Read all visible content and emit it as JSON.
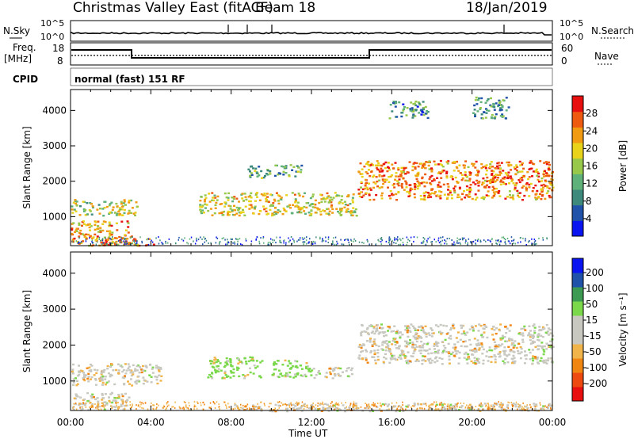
{
  "header": {
    "station": "Christmas Valley East (fitACF)",
    "beam": "Beam 18",
    "date": "18/Jan/2019"
  },
  "strip": {
    "nsky_label": "N.Sky",
    "nsearch_label": "N.Search",
    "freq_label": "Freq.",
    "freq_unit": "[MHz]",
    "nave_label": "Nave",
    "cpid_label": "CPID",
    "noise_ticks_left": [
      "10^5",
      "10^0"
    ],
    "noise_ticks_right": [
      "10^5",
      "10^0"
    ],
    "freq_ticks": [
      "18",
      "8"
    ],
    "nave_ticks": [
      "60",
      "0"
    ],
    "cpid_text": "normal (fast) 151 RF"
  },
  "chart_data": [
    {
      "type": "heatmap",
      "title": "",
      "ylabel": "Slant Range [km]",
      "xlabel": "Time UT",
      "x_ticks": [
        "00:00",
        "04:00",
        "08:00",
        "12:00",
        "16:00",
        "20:00",
        "00:00"
      ],
      "y_ticks": [
        "1000",
        "2000",
        "3000",
        "4000"
      ],
      "ylim": [
        180,
        4590
      ],
      "xlim_hours": [
        0,
        24
      ],
      "colorbar": {
        "label": "Power [dB]",
        "ticks": [
          "4",
          "8",
          "12",
          "16",
          "20",
          "24",
          "28"
        ],
        "range": [
          0,
          32
        ],
        "colors": [
          "#0a14f0",
          "#1f52a8",
          "#3d8a7d",
          "#5fb17a",
          "#97c84a",
          "#e8d21a",
          "#f09b12",
          "#ee5a10",
          "#e8100e"
        ]
      },
      "regions": [
        {
          "t0": 0.0,
          "t1": 3.3,
          "r0": 1050,
          "r1": 1500,
          "level": 0.55
        },
        {
          "t0": 0.0,
          "t1": 3.0,
          "r0": 200,
          "r1": 900,
          "level": 0.75
        },
        {
          "t0": 1.5,
          "t1": 4.2,
          "r0": 200,
          "r1": 400,
          "level": 0.9
        },
        {
          "t0": 6.4,
          "t1": 14.2,
          "r0": 1050,
          "r1": 1700,
          "level": 0.6
        },
        {
          "t0": 8.8,
          "t1": 9.9,
          "r0": 2100,
          "r1": 2500,
          "level": 0.4
        },
        {
          "t0": 10.1,
          "t1": 11.5,
          "r0": 2150,
          "r1": 2500,
          "level": 0.35
        },
        {
          "t0": 14.3,
          "t1": 24.0,
          "r0": 1500,
          "r1": 2600,
          "level": 0.8
        },
        {
          "t0": 15.8,
          "t1": 17.8,
          "r0": 3800,
          "r1": 4300,
          "level": 0.3
        },
        {
          "t0": 20.0,
          "t1": 21.8,
          "r0": 3800,
          "r1": 4400,
          "level": 0.3
        }
      ]
    },
    {
      "type": "heatmap",
      "title": "",
      "ylabel": "Slant Range [km]",
      "xlabel": "Time UT",
      "x_ticks": [
        "00:00",
        "04:00",
        "08:00",
        "12:00",
        "16:00",
        "20:00",
        "00:00"
      ],
      "y_ticks": [
        "1000",
        "2000",
        "3000",
        "4000"
      ],
      "ylim": [
        180,
        4590
      ],
      "xlim_hours": [
        0,
        24
      ],
      "colorbar": {
        "label": "Velocity [m s⁻¹]",
        "ticks": [
          "200",
          "100",
          "50",
          "15",
          "-15",
          "-50",
          "-100",
          "-200"
        ],
        "range": [
          -250,
          250
        ],
        "colors": [
          "#e8100e",
          "#ee4a10",
          "#f08512",
          "#f0b44a",
          "#c8c8c0",
          "#c8c8c0",
          "#7ad84a",
          "#3c9a52",
          "#1f52a8",
          "#0a14f0"
        ]
      },
      "regions": [
        {
          "t0": 0.0,
          "t1": 4.5,
          "r0": 900,
          "r1": 1500,
          "level": 0.5
        },
        {
          "t0": 0.0,
          "t1": 3.0,
          "r0": 200,
          "r1": 700,
          "level": 0.6
        },
        {
          "t0": 6.8,
          "t1": 9.5,
          "r0": 1100,
          "r1": 1700,
          "level": 0.7
        },
        {
          "t0": 10.0,
          "t1": 12.0,
          "r0": 1100,
          "r1": 1600,
          "level": 0.7
        },
        {
          "t0": 12.0,
          "t1": 14.0,
          "r0": 1100,
          "r1": 1400,
          "level": 0.3
        },
        {
          "t0": 14.3,
          "t1": 24.0,
          "r0": 1500,
          "r1": 2600,
          "level": 0.5
        },
        {
          "t0": 8.0,
          "t1": 24.0,
          "r0": 180,
          "r1": 400,
          "level": 0.3
        }
      ]
    }
  ]
}
